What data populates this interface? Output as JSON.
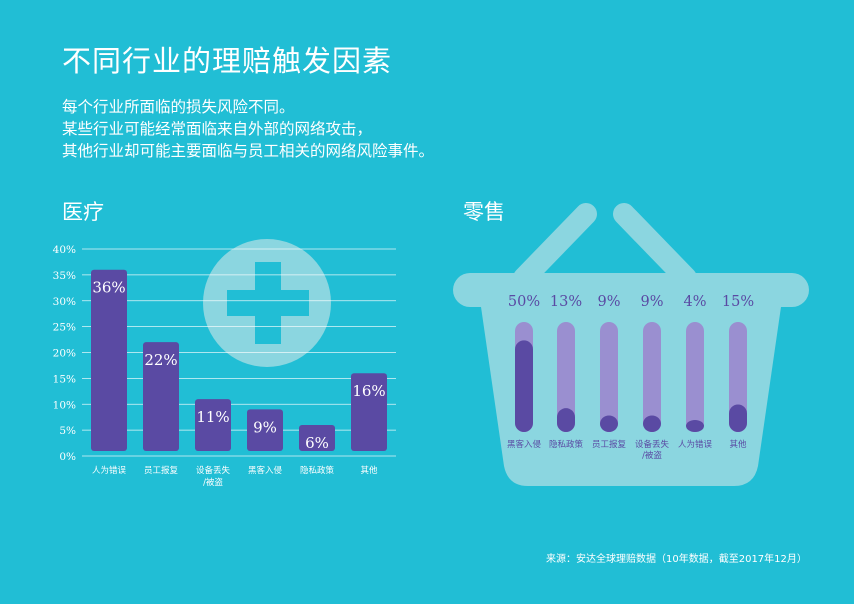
{
  "title": "不同行业的理赔触发因素",
  "intro": [
    "每个行业所面临的损失风险不同。",
    "某些行业可能经常面临来自外部的网络攻击，",
    "其他行业却可能主要面临与员工相关的网络风险事件。"
  ],
  "sections": {
    "medical": "医疗",
    "retail": "零售"
  },
  "source": "来源：安达全球理赔数据（10年数据，截至2017年12月）",
  "colors": {
    "background": "#21bed5",
    "bar": "#5a4aa3",
    "track": "#9a8fd0",
    "decor": "#8bd6e0"
  },
  "icons": {
    "medical": "medical-cross-icon",
    "retail": "shopping-basket-icon"
  },
  "chart_data": [
    {
      "type": "bar",
      "title": "医疗",
      "categories": [
        "人为错误",
        "员工报复",
        "设备丢失/被盗",
        "黑客入侵",
        "隐私政策",
        "其他"
      ],
      "category_lines": [
        [
          "人为错误"
        ],
        [
          "员工报复"
        ],
        [
          "设备丢失",
          "/被盗"
        ],
        [
          "黑客入侵"
        ],
        [
          "隐私政策"
        ],
        [
          "其他"
        ]
      ],
      "values": [
        36,
        22,
        11,
        9,
        6,
        16
      ],
      "data_labels": [
        "36%",
        "22%",
        "11%",
        "9%",
        "6%",
        "16%"
      ],
      "yticks": [
        "0%",
        "5%",
        "10%",
        "15%",
        "20%",
        "25%",
        "30%",
        "35%",
        "40%"
      ],
      "ylim": [
        0,
        40
      ],
      "grid": true
    },
    {
      "type": "bar",
      "title": "零售",
      "categories": [
        "黑客入侵",
        "隐私政策",
        "员工报复",
        "设备丢失/被盗",
        "人为错误",
        "其他"
      ],
      "category_lines": [
        [
          "黑客入侵"
        ],
        [
          "隐私政策"
        ],
        [
          "员工报复"
        ],
        [
          "设备丢失",
          "/被盗"
        ],
        [
          "人为错误"
        ],
        [
          "其他"
        ]
      ],
      "values": [
        50,
        13,
        9,
        9,
        4,
        15
      ],
      "data_labels": [
        "50%",
        "13%",
        "9%",
        "9%",
        "4%",
        "15%"
      ],
      "ylim": [
        0,
        60
      ],
      "grid": false
    }
  ]
}
